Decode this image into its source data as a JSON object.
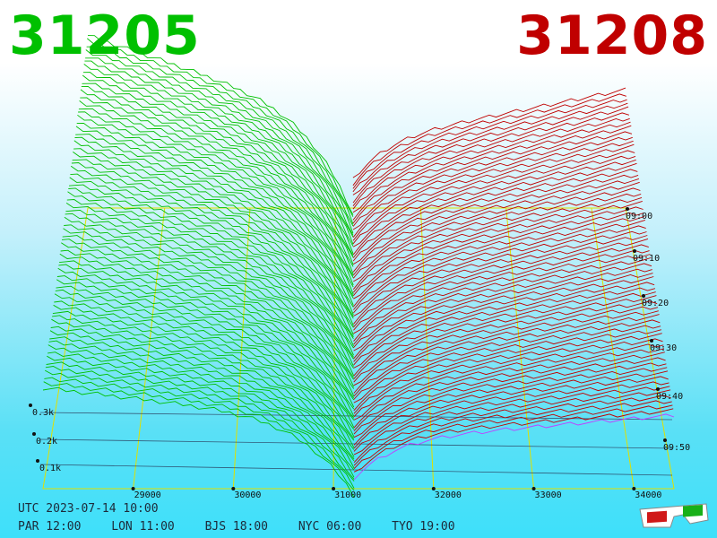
{
  "header": {
    "bid_price": "31205",
    "ask_price": "31208"
  },
  "colors": {
    "bid": "#00c000",
    "ask": "#c00000",
    "grid": "#e0e000",
    "ask_front": "#c040ff",
    "level": "#222244"
  },
  "footer": {
    "utc": "UTC 2023-07-14 10:00",
    "zones": [
      {
        "label": "PAR 12:00"
      },
      {
        "label": "LON 11:00"
      },
      {
        "label": "BJS 18:00"
      },
      {
        "label": "NYC 06:00"
      },
      {
        "label": "TYO 19:00"
      }
    ]
  },
  "icons": {
    "glasses": "3d-glasses-icon"
  },
  "chart_data": {
    "type": "area",
    "subtype": "3d-order-book-depth-over-time",
    "x_axis": {
      "ticks": [
        29000,
        30000,
        31000,
        32000,
        33000,
        34000
      ],
      "range": [
        28100,
        34400
      ]
    },
    "z_axis_labels": [
      "0.1k",
      "0.2k",
      "0.3k"
    ],
    "time_axis": [
      "09:00",
      "09:10",
      "09:20",
      "09:30",
      "09:40",
      "09:50"
    ],
    "bid_price": 31205,
    "ask_price": 31208,
    "grid": true
  }
}
